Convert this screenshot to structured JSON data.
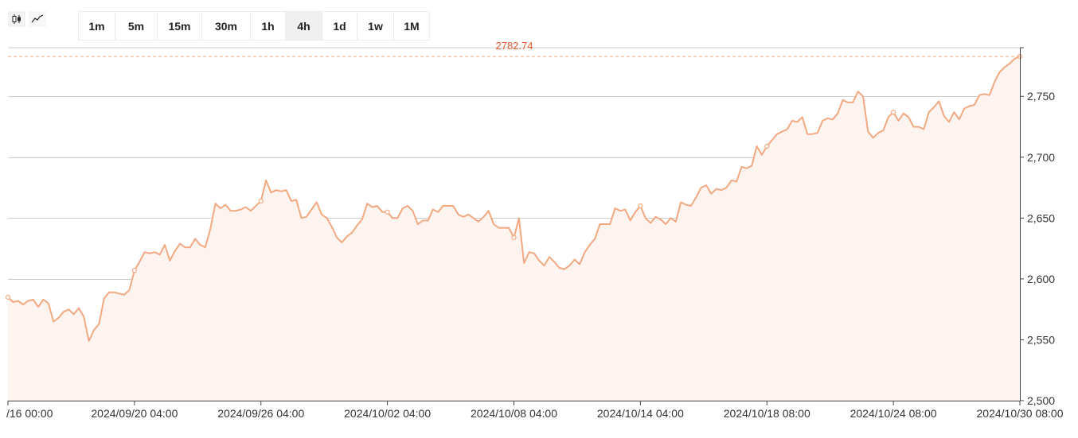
{
  "toolbar": {
    "chart_type_buttons": [
      {
        "icon": "candlestick-icon",
        "active": true
      },
      {
        "icon": "line-chart-icon",
        "active": false
      }
    ],
    "timeframes": [
      "1m",
      "5m",
      "15m",
      "30m",
      "1h",
      "4h",
      "1d",
      "1w",
      "1M"
    ],
    "active_timeframe": "4h"
  },
  "colors": {
    "line": "#f2a881",
    "area": "#fdf4ef",
    "last_price_label": "#e0592a",
    "grid": "#cccccc",
    "axis": "#444444"
  },
  "chart_data": {
    "type": "area",
    "last_price": 2782.74,
    "last_price_label": "2782.74",
    "ylim": [
      2500,
      2790
    ],
    "y_ticks": [
      2500,
      2550,
      2600,
      2650,
      2700,
      2750
    ],
    "y_tick_labels": [
      "2,500",
      "2,550",
      "2,600",
      "2,650",
      "2,700",
      "2,750"
    ],
    "x_tick_labels": [
      "/16 00:00",
      "2024/09/20 04:00",
      "2024/09/26 04:00",
      "2024/10/02 04:00",
      "2024/10/08 04:00",
      "2024/10/14 04:00",
      "2024/10/18 08:00",
      "2024/10/24 08:00",
      "2024/10/30 08:00"
    ],
    "x_tick_index": [
      0,
      25,
      50,
      75,
      100,
      125,
      150,
      175,
      200
    ],
    "marker_index": [
      0,
      25,
      50,
      75,
      100,
      125,
      150,
      175,
      200
    ],
    "values": [
      2585,
      2581,
      2582,
      2579,
      2582,
      2583,
      2577,
      2583,
      2580,
      2565,
      2568,
      2573,
      2575,
      2571,
      2576,
      2569,
      2549,
      2558,
      2563,
      2584,
      2589,
      2589,
      2588,
      2587,
      2591,
      2607,
      2614,
      2622,
      2621,
      2622,
      2620,
      2628,
      2615,
      2623,
      2629,
      2626,
      2626,
      2633,
      2628,
      2626,
      2641,
      2662,
      2658,
      2661,
      2656,
      2656,
      2657,
      2659,
      2656,
      2660,
      2664,
      2681,
      2671,
      2673,
      2672,
      2673,
      2664,
      2665,
      2650,
      2651,
      2657,
      2663,
      2653,
      2650,
      2643,
      2634,
      2630,
      2635,
      2638,
      2644,
      2649,
      2662,
      2659,
      2660,
      2655,
      2655,
      2650,
      2650,
      2658,
      2660,
      2656,
      2645,
      2648,
      2648,
      2657,
      2655,
      2660,
      2660,
      2660,
      2653,
      2651,
      2653,
      2650,
      2647,
      2651,
      2656,
      2645,
      2642,
      2642,
      2642,
      2634,
      2650,
      2613,
      2622,
      2621,
      2615,
      2611,
      2618,
      2614,
      2609,
      2608,
      2611,
      2616,
      2612,
      2622,
      2628,
      2633,
      2645,
      2645,
      2645,
      2658,
      2656,
      2657,
      2648,
      2655,
      2660,
      2650,
      2646,
      2651,
      2649,
      2645,
      2650,
      2647,
      2663,
      2661,
      2660,
      2667,
      2675,
      2677,
      2670,
      2674,
      2673,
      2675,
      2681,
      2680,
      2692,
      2691,
      2693,
      2709,
      2702,
      2709,
      2714,
      2719,
      2721,
      2723,
      2730,
      2729,
      2733,
      2719,
      2719,
      2720,
      2730,
      2732,
      2731,
      2736,
      2747,
      2745,
      2745,
      2754,
      2750,
      2721,
      2716,
      2720,
      2722,
      2733,
      2737,
      2730,
      2736,
      2733,
      2725,
      2725,
      2723,
      2737,
      2741,
      2746,
      2734,
      2729,
      2737,
      2731,
      2740,
      2742,
      2743,
      2751,
      2752,
      2751,
      2762,
      2770,
      2774,
      2777,
      2781,
      2782.74
    ]
  }
}
